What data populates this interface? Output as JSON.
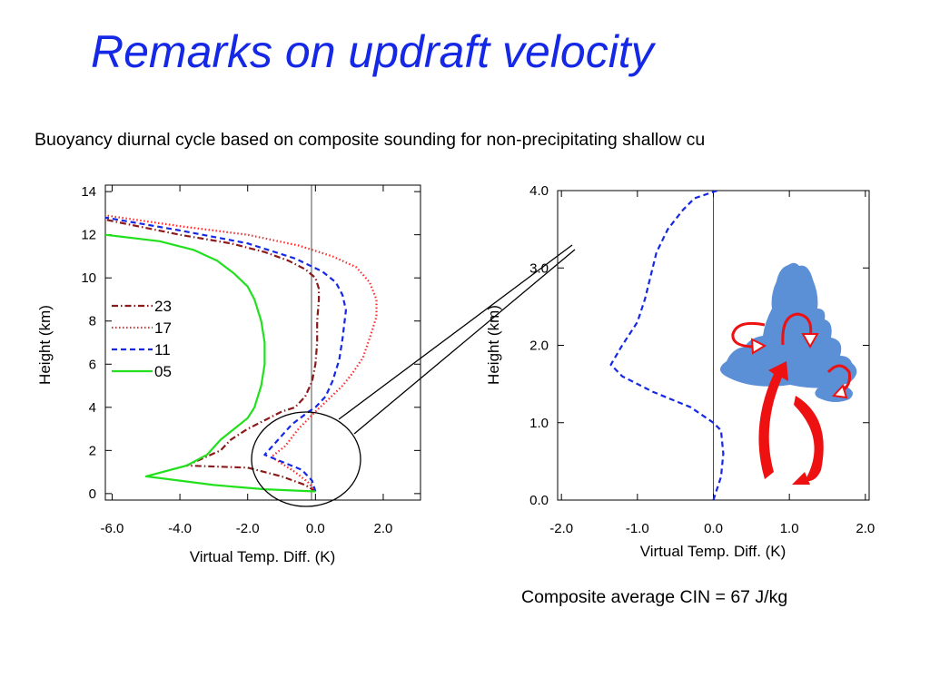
{
  "slide": {
    "title": "Remarks on updraft velocity",
    "subtitle": "Buoyancy diurnal cycle based on composite sounding for non-precipitating shallow cu",
    "cin_text": "Composite average CIN = 67 J/kg"
  },
  "chart_data": [
    {
      "type": "line",
      "xlabel": "Virtual Temp. Diff. (K)",
      "ylabel": "Height (km)",
      "xlim": [
        -6.2,
        3.1
      ],
      "ylim": [
        -0.3,
        14.3
      ],
      "xticks": [
        "-6.0",
        "-4.0",
        "-2.0",
        "0.0",
        "2.0"
      ],
      "xtick_values": [
        -6,
        -4,
        -2,
        0,
        2
      ],
      "yticks": [
        "0",
        "2",
        "4",
        "6",
        "8",
        "10",
        "12",
        "14"
      ],
      "ytick_values": [
        0,
        2,
        4,
        6,
        8,
        10,
        12,
        14
      ],
      "reference_line_x": 0,
      "legend_position": "upper-left",
      "series": [
        {
          "name": "23",
          "color": "#8b1a1a",
          "style": "dashdot",
          "x": [
            0.0,
            -0.3,
            -1.0,
            -2.0,
            -3.8,
            -2.8,
            -2.5,
            -2.0,
            -1.5,
            -1.0,
            -0.6,
            -0.3,
            -0.1,
            0.0,
            0.05,
            0.05,
            0.1,
            0.1,
            0.0,
            -0.3,
            -0.8,
            -1.5,
            -2.5,
            -4.0,
            -6.2
          ],
          "y": [
            0.1,
            0.4,
            0.8,
            1.2,
            1.3,
            2.0,
            2.5,
            3.0,
            3.4,
            3.8,
            4.0,
            4.5,
            5.2,
            6.0,
            7.0,
            8.0,
            9.0,
            9.5,
            10.0,
            10.4,
            10.8,
            11.2,
            11.6,
            12.0,
            12.7
          ]
        },
        {
          "name": "17",
          "color": "#ff2a2a",
          "style": "dotted",
          "x": [
            0.0,
            -0.2,
            -0.6,
            -1.3,
            -0.9,
            -0.5,
            0.0,
            0.4,
            0.8,
            1.1,
            1.4,
            1.6,
            1.8,
            1.8,
            1.6,
            1.2,
            0.5,
            -0.5,
            -2.0,
            -4.0,
            -6.2
          ],
          "y": [
            0.1,
            0.5,
            1.0,
            1.7,
            2.2,
            3.0,
            3.8,
            4.4,
            5.0,
            5.6,
            6.3,
            7.2,
            8.2,
            9.0,
            9.8,
            10.5,
            11.0,
            11.5,
            12.0,
            12.4,
            12.9
          ]
        },
        {
          "name": "11",
          "color": "#1428e6",
          "style": "dashed",
          "x": [
            0.0,
            -0.1,
            -0.4,
            -1.5,
            -1.1,
            -0.7,
            -0.2,
            0.0,
            0.3,
            0.5,
            0.7,
            0.8,
            0.9,
            0.8,
            0.6,
            0.2,
            -0.6,
            -2.0,
            -4.0,
            -6.2
          ],
          "y": [
            0.1,
            0.6,
            1.1,
            1.8,
            2.5,
            3.2,
            3.8,
            4.0,
            4.5,
            5.2,
            6.2,
            7.2,
            8.5,
            9.2,
            9.8,
            10.3,
            10.9,
            11.6,
            12.2,
            12.8
          ]
        },
        {
          "name": "05",
          "color": "#22e01e",
          "style": "solid",
          "x": [
            0.0,
            -1.5,
            -3.0,
            -5.0,
            -3.8,
            -3.2,
            -2.8,
            -2.4,
            -2.0,
            -1.8,
            -1.6,
            -1.5,
            -1.5,
            -1.6,
            -1.8,
            -2.0,
            -2.4,
            -2.9,
            -3.6,
            -4.6,
            -6.2
          ],
          "y": [
            0.1,
            0.2,
            0.4,
            0.8,
            1.3,
            1.8,
            2.5,
            3.0,
            3.5,
            4.0,
            5.0,
            6.0,
            7.0,
            8.0,
            9.0,
            9.6,
            10.2,
            10.8,
            11.3,
            11.7,
            12.0
          ]
        }
      ]
    },
    {
      "type": "line",
      "xlabel": "Virtual Temp. Diff. (K)",
      "ylabel": "Height (km)",
      "xlim": [
        -2.05,
        2.05
      ],
      "ylim": [
        0.0,
        4.0
      ],
      "xticks": [
        "-2.0",
        "-1.0",
        "0.0",
        "1.0",
        "2.0"
      ],
      "xtick_values": [
        -2,
        -1,
        0,
        1,
        2
      ],
      "yticks": [
        "0.0",
        "1.0",
        "2.0",
        "3.0",
        "4.0"
      ],
      "ytick_values": [
        0,
        1,
        2,
        3,
        4
      ],
      "reference_line_x": 0,
      "series": [
        {
          "color": "#1428e6",
          "style": "dashed",
          "x": [
            0.0,
            0.1,
            0.13,
            0.1,
            0.0,
            -0.3,
            -0.8,
            -1.2,
            -1.35,
            -1.2,
            -1.0,
            -0.9,
            -0.85,
            -0.8,
            -0.75,
            -0.6,
            -0.4,
            -0.25,
            0.05
          ],
          "y": [
            0.0,
            0.3,
            0.6,
            0.9,
            1.0,
            1.2,
            1.4,
            1.6,
            1.75,
            2.0,
            2.3,
            2.6,
            2.8,
            3.0,
            3.2,
            3.5,
            3.75,
            3.9,
            4.0
          ]
        }
      ]
    }
  ],
  "diagram": {
    "cloud_color": "#5b8fd6",
    "arrow_color": "#ee1111",
    "zoom_outline_color": "#000000"
  }
}
